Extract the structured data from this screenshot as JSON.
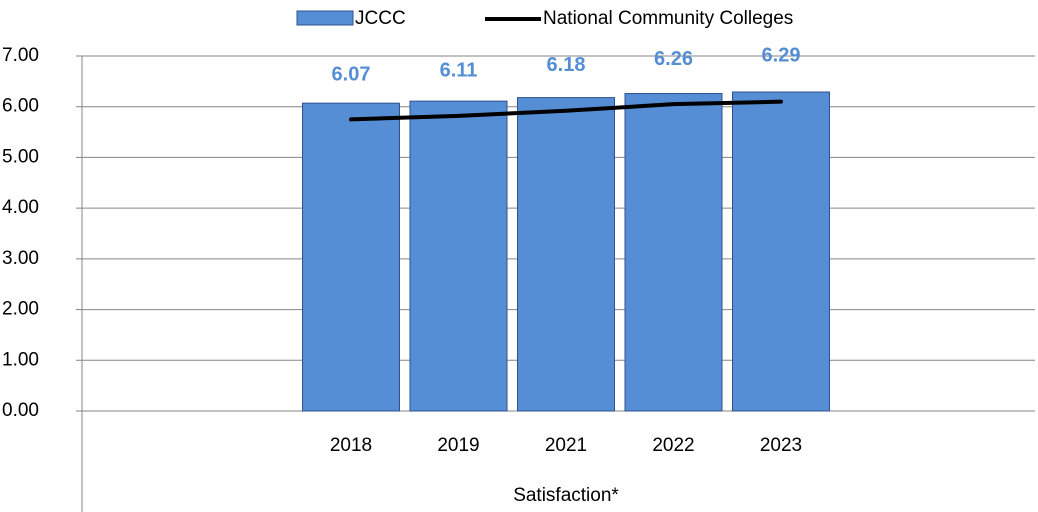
{
  "chart_data": {
    "type": "bar",
    "x_label": "Satisfaction*",
    "categories": [
      "2018",
      "2019",
      "2021",
      "2022",
      "2023"
    ],
    "series": [
      {
        "name": "JCCC",
        "type": "bar",
        "color": "#558ed5",
        "values": [
          6.07,
          6.11,
          6.18,
          6.26,
          6.29
        ]
      },
      {
        "name": "National Community Colleges",
        "type": "line",
        "color": "#000000",
        "values": [
          5.75,
          5.82,
          5.92,
          6.05,
          6.1
        ]
      }
    ],
    "ylim": [
      0,
      7
    ],
    "yticks": [
      {
        "value": 0,
        "label": "0.00"
      },
      {
        "value": 1,
        "label": "1.00"
      },
      {
        "value": 2,
        "label": "2.00"
      },
      {
        "value": 3,
        "label": "3.00"
      },
      {
        "value": 4,
        "label": "4.00"
      },
      {
        "value": 5,
        "label": "5.00"
      },
      {
        "value": 6,
        "label": "6.00"
      },
      {
        "value": 7,
        "label": "7.00"
      }
    ],
    "grid": true,
    "legend": "top"
  }
}
